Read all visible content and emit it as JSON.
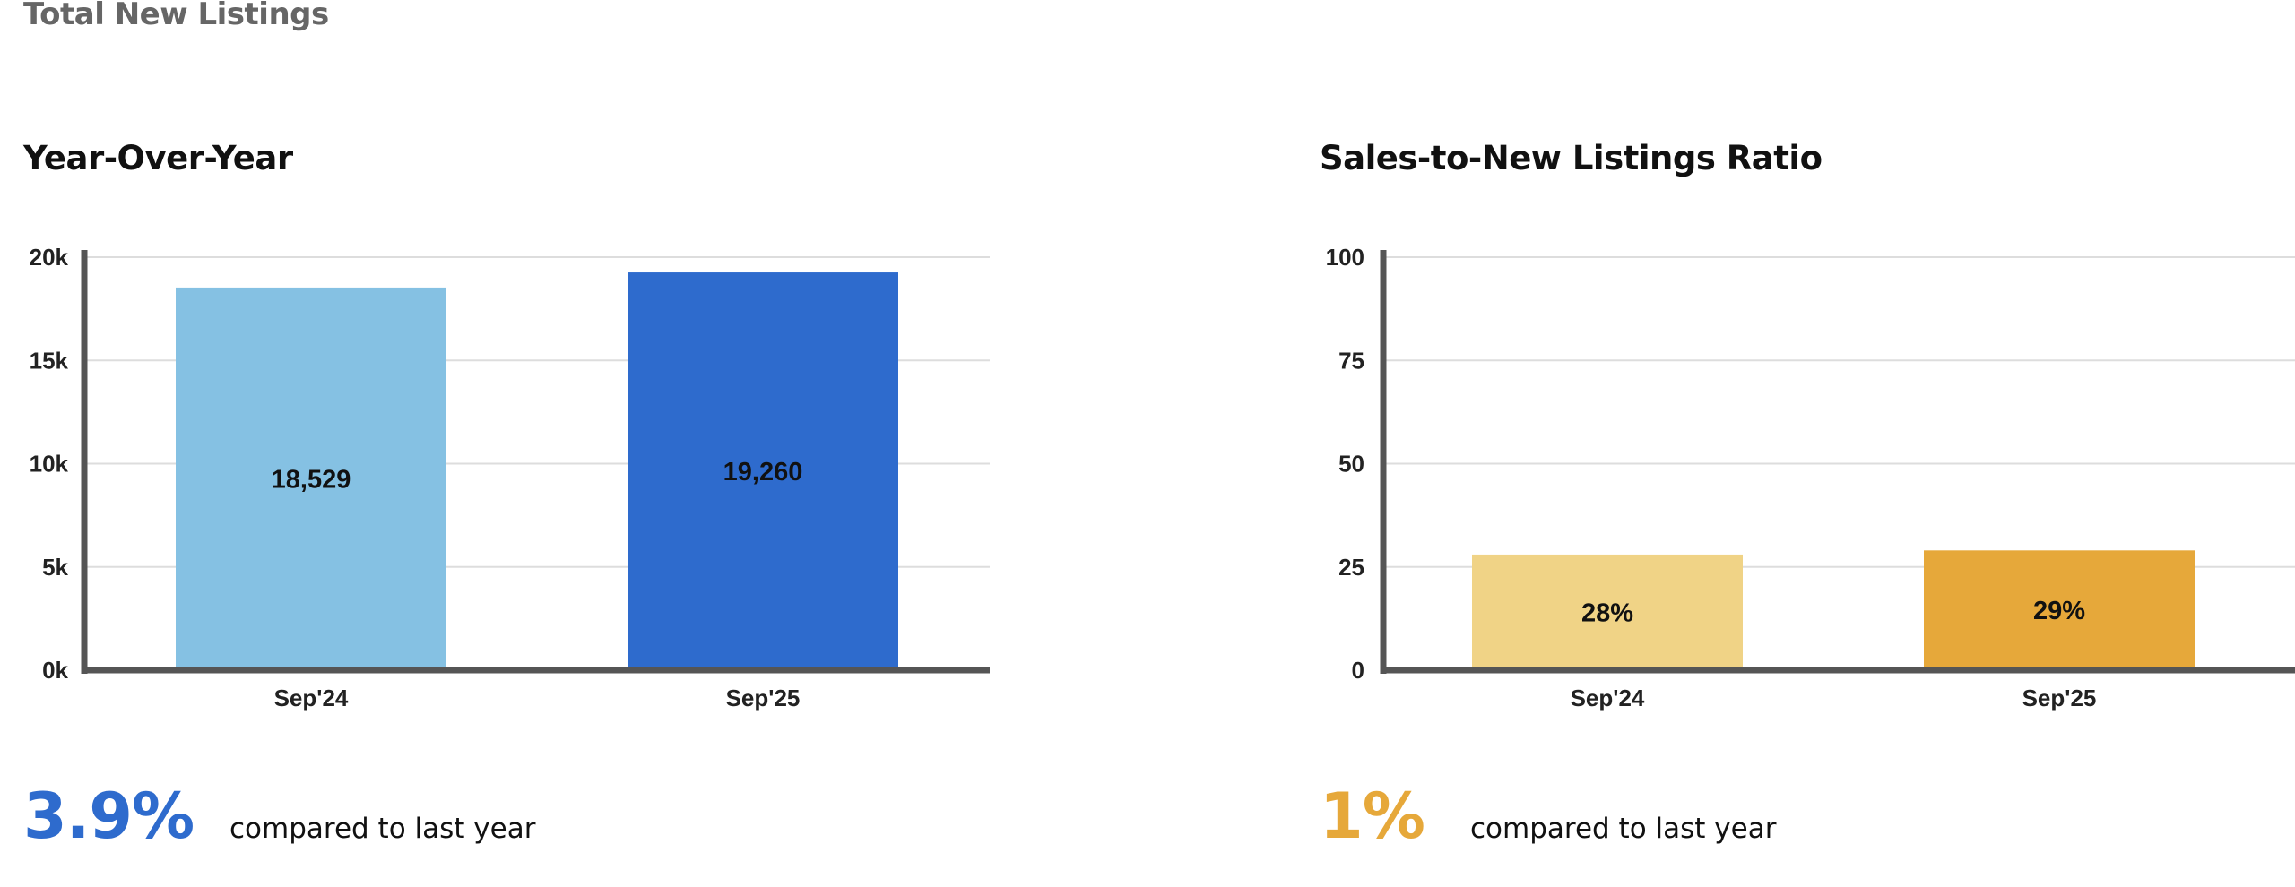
{
  "page": {
    "title": "Total New Listings"
  },
  "chart_data": [
    {
      "type": "bar",
      "title": "Year-Over-Year",
      "categories": [
        "Sep'24",
        "Sep'25"
      ],
      "values": [
        18529,
        19260
      ],
      "value_labels": [
        "18,529",
        "19,260"
      ],
      "colors": [
        "#85c1e3",
        "#2e6bcd"
      ],
      "yticks": [
        0,
        5000,
        10000,
        15000,
        20000
      ],
      "ytick_labels": [
        "0k",
        "5k",
        "10k",
        "15k",
        "20k"
      ],
      "ylim": [
        0,
        20000
      ],
      "grid": true,
      "summary": {
        "change": "3.9%",
        "text": "compared to last year",
        "color": "#2e6bcd"
      }
    },
    {
      "type": "bar",
      "title": "Sales-to-New Listings Ratio",
      "categories": [
        "Sep'24",
        "Sep'25"
      ],
      "values": [
        28,
        29
      ],
      "value_labels": [
        "28%",
        "29%"
      ],
      "colors": [
        "#f0d386",
        "#e6a83a"
      ],
      "yticks": [
        0,
        25,
        50,
        75,
        100
      ],
      "ytick_labels": [
        "0",
        "25",
        "50",
        "75",
        "100"
      ],
      "ylim": [
        0,
        100
      ],
      "grid": true,
      "summary": {
        "change": "1%",
        "text": "compared to last year",
        "color": "#e6a83a"
      }
    }
  ]
}
